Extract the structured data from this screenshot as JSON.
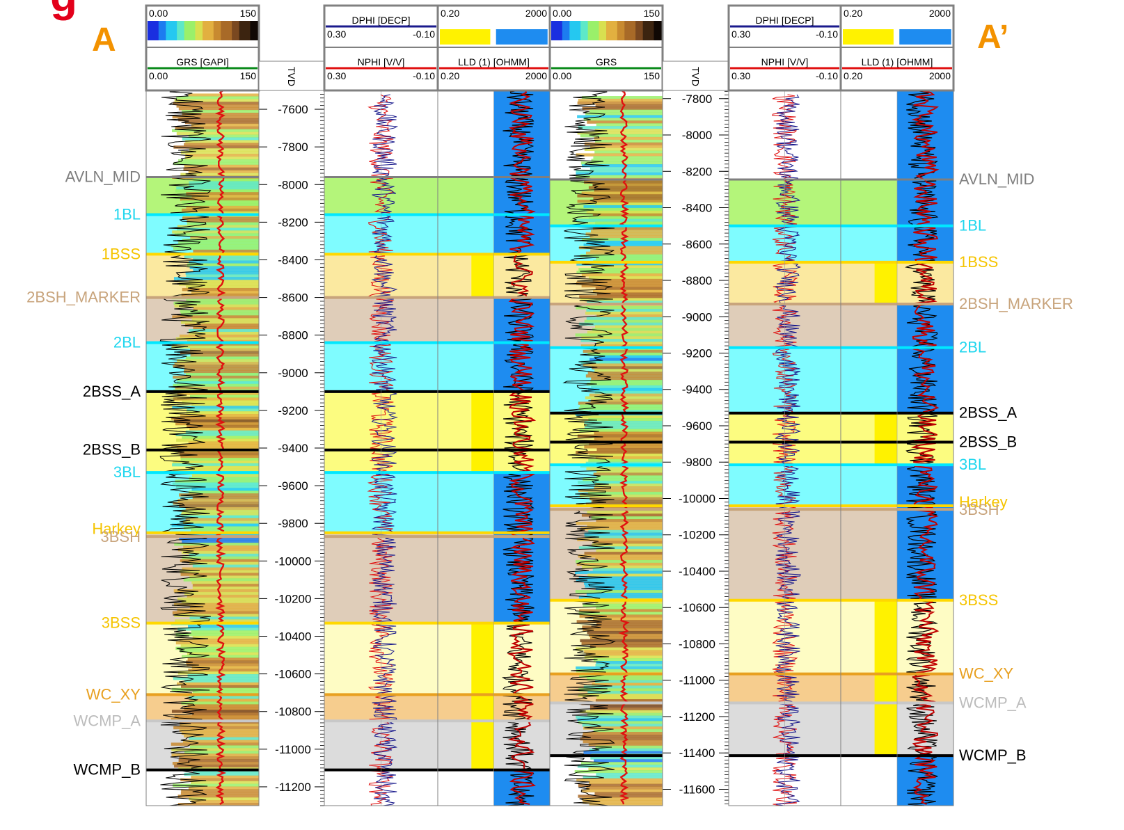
{
  "section_labels": {
    "left": "A",
    "right": "A’"
  },
  "corner_glyph": "g",
  "wells": [
    {
      "id": "A",
      "gr_scale": {
        "min": "0.00",
        "max": "150"
      },
      "gr_curve": {
        "name": "GRS [GAPI]",
        "min": "0.00",
        "max": "150"
      },
      "depth_title": "TVD",
      "porosity_curves": [
        {
          "name": "DPHI [DECP]",
          "left": "0.30",
          "right": "-0.10",
          "color": "#1a1a8c"
        },
        {
          "name": "NPHI [V/V]",
          "left": "0.30",
          "right": "-0.10",
          "color": "#e01010"
        }
      ],
      "resistivity_fill": {
        "min": "0.20",
        "max": "2000"
      },
      "resistivity_curve": {
        "name": "LLD (1) [OHMM]",
        "min": "0.20",
        "max": "2000"
      },
      "depth_range": [
        7500,
        11300
      ],
      "depth_ticks": [
        "-7600",
        "-7800",
        "-8000",
        "-8200",
        "-8400",
        "-8600",
        "-8800",
        "-9000",
        "-9200",
        "-9400",
        "-9600",
        "-9800",
        "-10000",
        "-10200",
        "-10400",
        "-10600",
        "-10800",
        "-11000",
        "-11200"
      ],
      "tops": [
        {
          "name": "AVLN_MID",
          "depth": 7960
        },
        {
          "name": "1BL",
          "depth": 8160
        },
        {
          "name": "1BSS",
          "depth": 8370
        },
        {
          "name": "2BSH_MARKER",
          "depth": 8600
        },
        {
          "name": "2BL",
          "depth": 8840
        },
        {
          "name": "2BSS_A",
          "depth": 9100
        },
        {
          "name": "2BSS_B",
          "depth": 9410
        },
        {
          "name": "3BL",
          "depth": 9530
        },
        {
          "name": "Harkey",
          "depth": 9850
        },
        {
          "name": "3BSH",
          "depth": 9870
        },
        {
          "name": "3BSS",
          "depth": 10330
        },
        {
          "name": "WC_XY",
          "depth": 10710
        },
        {
          "name": "WCMP_A",
          "depth": 10850
        },
        {
          "name": "WCMP_B",
          "depth": 11110
        }
      ]
    },
    {
      "id": "A’",
      "gr_scale": {
        "min": "0.00",
        "max": "150"
      },
      "gr_curve": {
        "name": "GRS",
        "min": "0.00",
        "max": "150"
      },
      "depth_title": "TVD",
      "porosity_curves": [
        {
          "name": "DPHI [DECP]",
          "left": "0.30",
          "right": "-0.10",
          "color": "#1a1a8c"
        },
        {
          "name": "NPHI [V/V]",
          "left": "0.30",
          "right": "-0.10",
          "color": "#e01010"
        }
      ],
      "resistivity_fill": {
        "min": "0.20",
        "max": "2000"
      },
      "resistivity_curve": {
        "name": "LLD (1) [OHMM]",
        "min": "0.20",
        "max": "2000"
      },
      "depth_range": [
        7755,
        11690
      ],
      "depth_ticks": [
        "-7800",
        "-8000",
        "-8200",
        "-8400",
        "-8600",
        "-8800",
        "-9000",
        "-9200",
        "-9400",
        "-9600",
        "-9800",
        "-10000",
        "-10200",
        "-10400",
        "-10600",
        "-10800",
        "-11000",
        "-11200",
        "-11400",
        "-11600"
      ],
      "tops": [
        {
          "name": "AVLN_MID",
          "depth": 8245
        },
        {
          "name": "1BL",
          "depth": 8500
        },
        {
          "name": "1BSS",
          "depth": 8700
        },
        {
          "name": "2BSH_MARKER",
          "depth": 8930
        },
        {
          "name": "2BL",
          "depth": 9170
        },
        {
          "name": "2BSS_A",
          "depth": 9530
        },
        {
          "name": "2BSS_B",
          "depth": 9690
        },
        {
          "name": "3BL",
          "depth": 9815
        },
        {
          "name": "Harkey",
          "depth": 10040
        },
        {
          "name": "3BSH",
          "depth": 10060
        },
        {
          "name": "3BSS",
          "depth": 10560
        },
        {
          "name": "WC_XY",
          "depth": 10965
        },
        {
          "name": "WCMP_A",
          "depth": 11125
        },
        {
          "name": "WCMP_B",
          "depth": 11415
        }
      ]
    }
  ],
  "zone_colors": {
    "AVLN_MID": "#b4f57a",
    "1BL": "#7ffcff",
    "1BSS": "#fbe9a0",
    "2BSH_MARKER": "#dfcdb9",
    "2BL": "#7ffcff",
    "2BSS_A": "#fcfc80",
    "2BSS_B": "#fcfc80",
    "3BL": "#7ffcff",
    "Harkey": "#dfcdb9",
    "3BSH": "#dfcdb9",
    "3BSS": "#fefcc4",
    "WC_XY": "#f6cd8e",
    "WCMP_A": "#dcdcdc",
    "WCMP_B": "#ffffff"
  },
  "top_line_colors": {
    "AVLN_MID": "#7f7f7f",
    "1BL": "#00e8ff",
    "1BSS": "#ffd800",
    "2BSH_MARKER": "#c8a47c",
    "2BL": "#00e8ff",
    "2BSS_A": "#000000",
    "2BSS_B": "#000000",
    "3BL": "#00e8ff",
    "Harkey": "#ffd800",
    "3BSH": "#c8a47c",
    "3BSS": "#ffd800",
    "WC_XY": "#e8a020",
    "WCMP_A": "#c8c8c8",
    "WCMP_B": "#000000"
  },
  "top_label_colors": {
    "AVLN_MID": "#7f7f7f",
    "1BL": "#1fd6ee",
    "1BSS": "#f5c400",
    "2BSH_MARKER": "#c8a47c",
    "2BL": "#1fd6ee",
    "2BSS_A": "#000000",
    "2BSS_B": "#000000",
    "3BL": "#1fd6ee",
    "Harkey": "#f5c400",
    "3BSH": "#c8a47c",
    "3BSS": "#f5c400",
    "WC_XY": "#e8a020",
    "WCMP_A": "#bcbcbc",
    "WCMP_B": "#000000"
  },
  "accent_colors": {
    "section_label": "#f39200",
    "corner_glyph": "#e3001b",
    "resistivity_fill": "#1e8cf0",
    "sand_flag": "#fff200",
    "gr_curve": "#e01010",
    "lld_curve": "#c00000"
  }
}
